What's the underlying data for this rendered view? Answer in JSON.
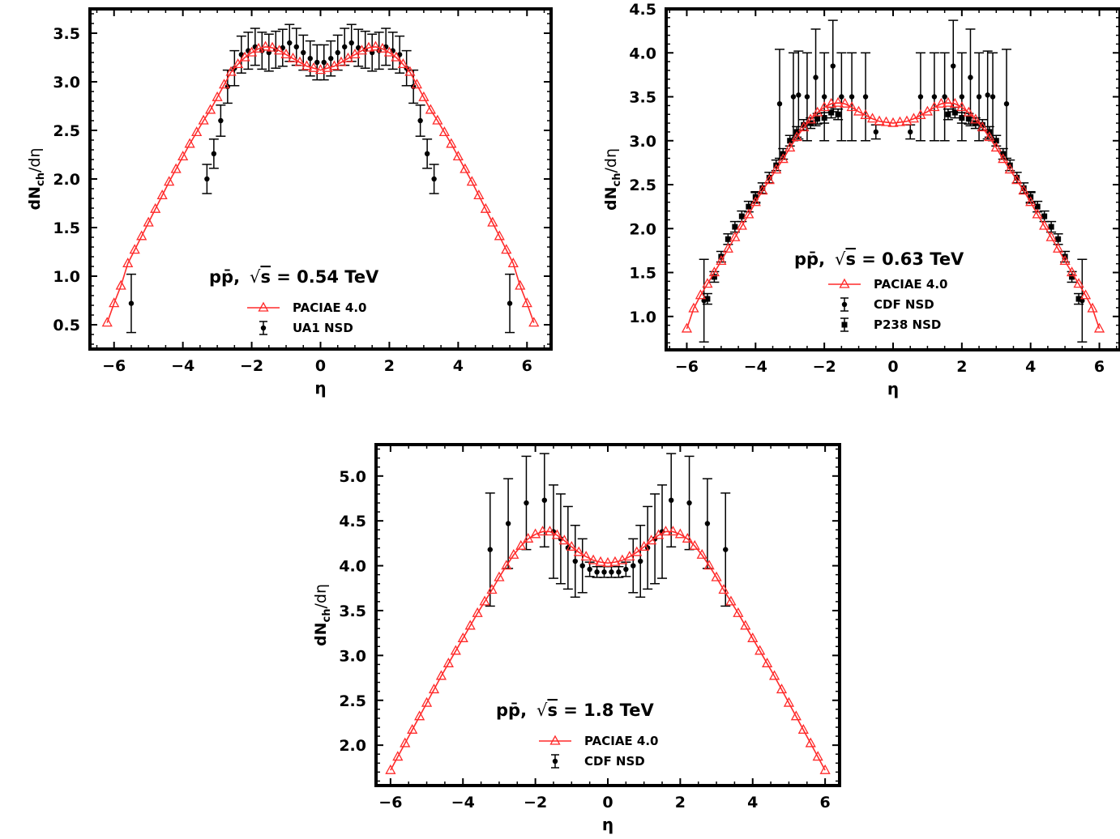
{
  "chart_data": [
    {
      "type": "line",
      "panel": "top-left",
      "annotation": {
        "text": "pp̄,  √s = 0.54 TeV",
        "prefix": "pp̄,",
        "sqrt": "√",
        "var": "s",
        "eq": " = 0.54 TeV"
      },
      "xlabel": "η",
      "ylabel": {
        "base": "dN",
        "sub": "ch",
        "tail": "/dη"
      },
      "xlim": [
        -6.7,
        6.7
      ],
      "ylim": [
        0.25,
        3.75
      ],
      "xticks": [
        -6,
        -4,
        -2,
        0,
        2,
        4,
        6
      ],
      "xtick_labels": [
        "−6",
        "−4",
        "−2",
        "0",
        "2",
        "4",
        "6"
      ],
      "yticks": [
        0.5,
        1.0,
        1.5,
        2.0,
        2.5,
        3.0,
        3.5
      ],
      "ytick_labels": [
        "0.5",
        "1.0",
        "1.5",
        "2.0",
        "2.5",
        "3.0",
        "3.5"
      ],
      "legend_position": "bottom-center",
      "legend": [
        {
          "label": "PACIAE 4.0",
          "type": "model"
        },
        {
          "label": "UA1 NSD",
          "type": "circle"
        }
      ],
      "model": {
        "name": "PACIAE 4.0",
        "color": "#ff2a2a",
        "type": "sym",
        "points": [
          [
            0,
            3.12
          ],
          [
            0.2,
            3.14
          ],
          [
            0.4,
            3.16
          ],
          [
            0.6,
            3.2
          ],
          [
            0.8,
            3.24
          ],
          [
            1.0,
            3.28
          ],
          [
            1.2,
            3.32
          ],
          [
            1.4,
            3.35
          ],
          [
            1.6,
            3.36
          ],
          [
            1.8,
            3.34
          ],
          [
            2.0,
            3.3
          ],
          [
            2.2,
            3.25
          ],
          [
            2.4,
            3.18
          ],
          [
            2.6,
            3.1
          ],
          [
            2.8,
            2.97
          ],
          [
            3.0,
            2.84
          ],
          [
            3.2,
            2.71
          ],
          [
            3.4,
            2.6
          ],
          [
            3.6,
            2.48
          ],
          [
            3.8,
            2.36
          ],
          [
            4.0,
            2.23
          ],
          [
            4.2,
            2.1
          ],
          [
            4.4,
            1.97
          ],
          [
            4.6,
            1.83
          ],
          [
            4.8,
            1.69
          ],
          [
            5.0,
            1.55
          ],
          [
            5.2,
            1.41
          ],
          [
            5.4,
            1.27
          ],
          [
            5.6,
            1.13
          ],
          [
            5.8,
            0.9
          ],
          [
            6.0,
            0.72
          ],
          [
            6.2,
            0.52
          ]
        ]
      },
      "data": [
        {
          "name": "UA1 NSD",
          "marker": "circle",
          "color": "#000000",
          "type": "sym",
          "points": [
            [
              0.1,
              3.2,
              0.18
            ],
            [
              0.3,
              3.24,
              0.18
            ],
            [
              0.5,
              3.3,
              0.18
            ],
            [
              0.7,
              3.36,
              0.19
            ],
            [
              0.9,
              3.4,
              0.19
            ],
            [
              1.1,
              3.35,
              0.19
            ],
            [
              1.3,
              3.33,
              0.19
            ],
            [
              1.5,
              3.3,
              0.19
            ],
            [
              1.7,
              3.32,
              0.19
            ],
            [
              1.9,
              3.36,
              0.19
            ],
            [
              2.1,
              3.32,
              0.19
            ],
            [
              2.3,
              3.28,
              0.19
            ],
            [
              2.5,
              3.14,
              0.18
            ],
            [
              2.7,
              2.95,
              0.17
            ],
            [
              2.9,
              2.6,
              0.16
            ],
            [
              3.1,
              2.26,
              0.15
            ],
            [
              3.3,
              2.0,
              0.15
            ],
            [
              5.5,
              0.72,
              0.3
            ]
          ]
        }
      ]
    },
    {
      "type": "line",
      "panel": "top-right",
      "annotation": {
        "text": "pp̄,  √s = 0.63  TeV",
        "prefix": "pp̄,",
        "sqrt": "√",
        "var": "s",
        "eq": " = 0.63  TeV"
      },
      "xlabel": "η",
      "ylabel": {
        "base": "dN",
        "sub": "ch",
        "tail": "/dη"
      },
      "xlim": [
        -6.6,
        6.6
      ],
      "ylim": [
        0.62,
        4.5
      ],
      "xticks": [
        -6,
        -4,
        -2,
        0,
        2,
        4,
        6
      ],
      "xtick_labels": [
        "−6",
        "−4",
        "−2",
        "0",
        "2",
        "4",
        "6"
      ],
      "yticks": [
        1.0,
        1.5,
        2.0,
        2.5,
        3.0,
        3.5,
        4.0,
        4.5
      ],
      "ytick_labels": [
        "1.0",
        "1.5",
        "2.0",
        "2.5",
        "3.0",
        "3.5",
        "4.0",
        "4.5"
      ],
      "legend_position": "bottom-center",
      "legend": [
        {
          "label": "PACIAE 4.0",
          "type": "model"
        },
        {
          "label": "CDF NSD",
          "type": "circle"
        },
        {
          "label": "P238 NSD",
          "type": "square"
        }
      ],
      "model": {
        "name": "PACIAE 4.0",
        "color": "#ff2a2a",
        "type": "sym",
        "points": [
          [
            0,
            3.2
          ],
          [
            0.2,
            3.21
          ],
          [
            0.4,
            3.22
          ],
          [
            0.6,
            3.25
          ],
          [
            0.8,
            3.29
          ],
          [
            1.0,
            3.33
          ],
          [
            1.2,
            3.38
          ],
          [
            1.4,
            3.42
          ],
          [
            1.6,
            3.43
          ],
          [
            1.8,
            3.42
          ],
          [
            2.0,
            3.38
          ],
          [
            2.2,
            3.32
          ],
          [
            2.4,
            3.24
          ],
          [
            2.6,
            3.15
          ],
          [
            2.8,
            3.04
          ],
          [
            3.0,
            2.92
          ],
          [
            3.2,
            2.79
          ],
          [
            3.4,
            2.67
          ],
          [
            3.6,
            2.55
          ],
          [
            3.8,
            2.43
          ],
          [
            4.0,
            2.3
          ],
          [
            4.2,
            2.16
          ],
          [
            4.4,
            2.03
          ],
          [
            4.6,
            1.9
          ],
          [
            4.8,
            1.77
          ],
          [
            5.0,
            1.63
          ],
          [
            5.2,
            1.5
          ],
          [
            5.4,
            1.37
          ],
          [
            5.6,
            1.24
          ],
          [
            5.8,
            1.09
          ],
          [
            6.0,
            0.86
          ]
        ]
      },
      "data": [
        {
          "name": "CDF NSD",
          "marker": "circle",
          "color": "#000000",
          "type": "sym",
          "points": [
            [
              0.5,
              3.1,
              0.08
            ],
            [
              1.5,
              3.5,
              0.5
            ],
            [
              2.0,
              3.5,
              0.5
            ],
            [
              2.5,
              3.5,
              0.5
            ],
            [
              3.3,
              3.42,
              0.62
            ],
            [
              4.0,
              2.35,
              0.06
            ],
            [
              5.5,
              1.18,
              0.47
            ],
            [
              2.9,
              3.5,
              0.5
            ],
            [
              1.2,
              3.5,
              0.5
            ],
            [
              0.8,
              3.5,
              0.5
            ],
            [
              1.75,
              3.85,
              0.52
            ],
            [
              2.25,
              3.72,
              0.55
            ],
            [
              2.75,
              3.52,
              0.5
            ]
          ]
        },
        {
          "name": "P238 NSD",
          "marker": "square",
          "color": "#000000",
          "type": "sym",
          "points": [
            [
              1.6,
              3.3,
              0.06
            ],
            [
              1.8,
              3.32,
              0.06
            ],
            [
              2.0,
              3.26,
              0.06
            ],
            [
              2.2,
              3.25,
              0.06
            ],
            [
              2.4,
              3.2,
              0.06
            ],
            [
              2.6,
              3.18,
              0.06
            ],
            [
              2.8,
              3.1,
              0.06
            ],
            [
              3.0,
              3.0,
              0.06
            ],
            [
              3.2,
              2.85,
              0.06
            ],
            [
              3.4,
              2.72,
              0.06
            ],
            [
              3.6,
              2.58,
              0.06
            ],
            [
              3.8,
              2.46,
              0.06
            ],
            [
              4.0,
              2.36,
              0.06
            ],
            [
              4.2,
              2.25,
              0.06
            ],
            [
              4.4,
              2.14,
              0.06
            ],
            [
              4.6,
              2.02,
              0.06
            ],
            [
              4.8,
              1.88,
              0.06
            ],
            [
              5.0,
              1.68,
              0.06
            ],
            [
              5.2,
              1.45,
              0.06
            ],
            [
              5.4,
              1.2,
              0.06
            ]
          ]
        }
      ]
    },
    {
      "type": "line",
      "panel": "bottom-center",
      "annotation": {
        "text": "pp̄,  √s = 1.8 TeV",
        "prefix": "pp̄,",
        "sqrt": "√",
        "var": "s",
        "eq": " = 1.8 TeV"
      },
      "xlabel": "η",
      "ylabel": {
        "base": "dN",
        "sub": "ch",
        "tail": "/dη"
      },
      "xlim": [
        -6.4,
        6.4
      ],
      "ylim": [
        1.55,
        5.35
      ],
      "xticks": [
        -6,
        -4,
        -2,
        0,
        2,
        4,
        6
      ],
      "xtick_labels": [
        "−6",
        "−4",
        "−2",
        "0",
        "2",
        "4",
        "6"
      ],
      "yticks": [
        2.0,
        2.5,
        3.0,
        3.5,
        4.0,
        4.5,
        5.0
      ],
      "ytick_labels": [
        "2.0",
        "2.5",
        "3.0",
        "3.5",
        "4.0",
        "4.5",
        "5.0"
      ],
      "legend_position": "bottom-center",
      "legend": [
        {
          "label": "PACIAE 4.0",
          "type": "model"
        },
        {
          "label": "CDF NSD",
          "type": "circle"
        }
      ],
      "model": {
        "name": "PACIAE 4.0",
        "color": "#ff2a2a",
        "type": "sym",
        "points": [
          [
            0,
            4.03
          ],
          [
            0.2,
            4.04
          ],
          [
            0.4,
            4.06
          ],
          [
            0.6,
            4.1
          ],
          [
            0.8,
            4.15
          ],
          [
            1.0,
            4.21
          ],
          [
            1.2,
            4.28
          ],
          [
            1.4,
            4.34
          ],
          [
            1.6,
            4.38
          ],
          [
            1.8,
            4.38
          ],
          [
            2.0,
            4.35
          ],
          [
            2.2,
            4.3
          ],
          [
            2.4,
            4.22
          ],
          [
            2.6,
            4.12
          ],
          [
            2.8,
            4.0
          ],
          [
            3.0,
            3.87
          ],
          [
            3.2,
            3.73
          ],
          [
            3.4,
            3.6
          ],
          [
            3.6,
            3.47
          ],
          [
            3.8,
            3.33
          ],
          [
            4.0,
            3.19
          ],
          [
            4.2,
            3.05
          ],
          [
            4.4,
            2.91
          ],
          [
            4.6,
            2.77
          ],
          [
            4.8,
            2.62
          ],
          [
            5.0,
            2.47
          ],
          [
            5.2,
            2.32
          ],
          [
            5.4,
            2.17
          ],
          [
            5.6,
            2.02
          ],
          [
            5.8,
            1.87
          ],
          [
            6.0,
            1.72
          ]
        ]
      },
      "data": [
        {
          "name": "CDF NSD",
          "marker": "circle",
          "color": "#000000",
          "type": "sym",
          "points": [
            [
              0.1,
              3.93,
              0.06
            ],
            [
              0.3,
              3.93,
              0.06
            ],
            [
              0.5,
              3.96,
              0.08
            ],
            [
              0.7,
              4.0,
              0.3
            ],
            [
              0.9,
              4.05,
              0.4
            ],
            [
              1.1,
              4.2,
              0.46
            ],
            [
              1.3,
              4.3,
              0.5
            ],
            [
              1.5,
              4.38,
              0.52
            ],
            [
              1.75,
              4.73,
              0.52
            ],
            [
              2.25,
              4.7,
              0.52
            ],
            [
              2.75,
              4.47,
              0.5
            ],
            [
              3.25,
              4.18,
              0.63
            ]
          ]
        }
      ]
    }
  ]
}
